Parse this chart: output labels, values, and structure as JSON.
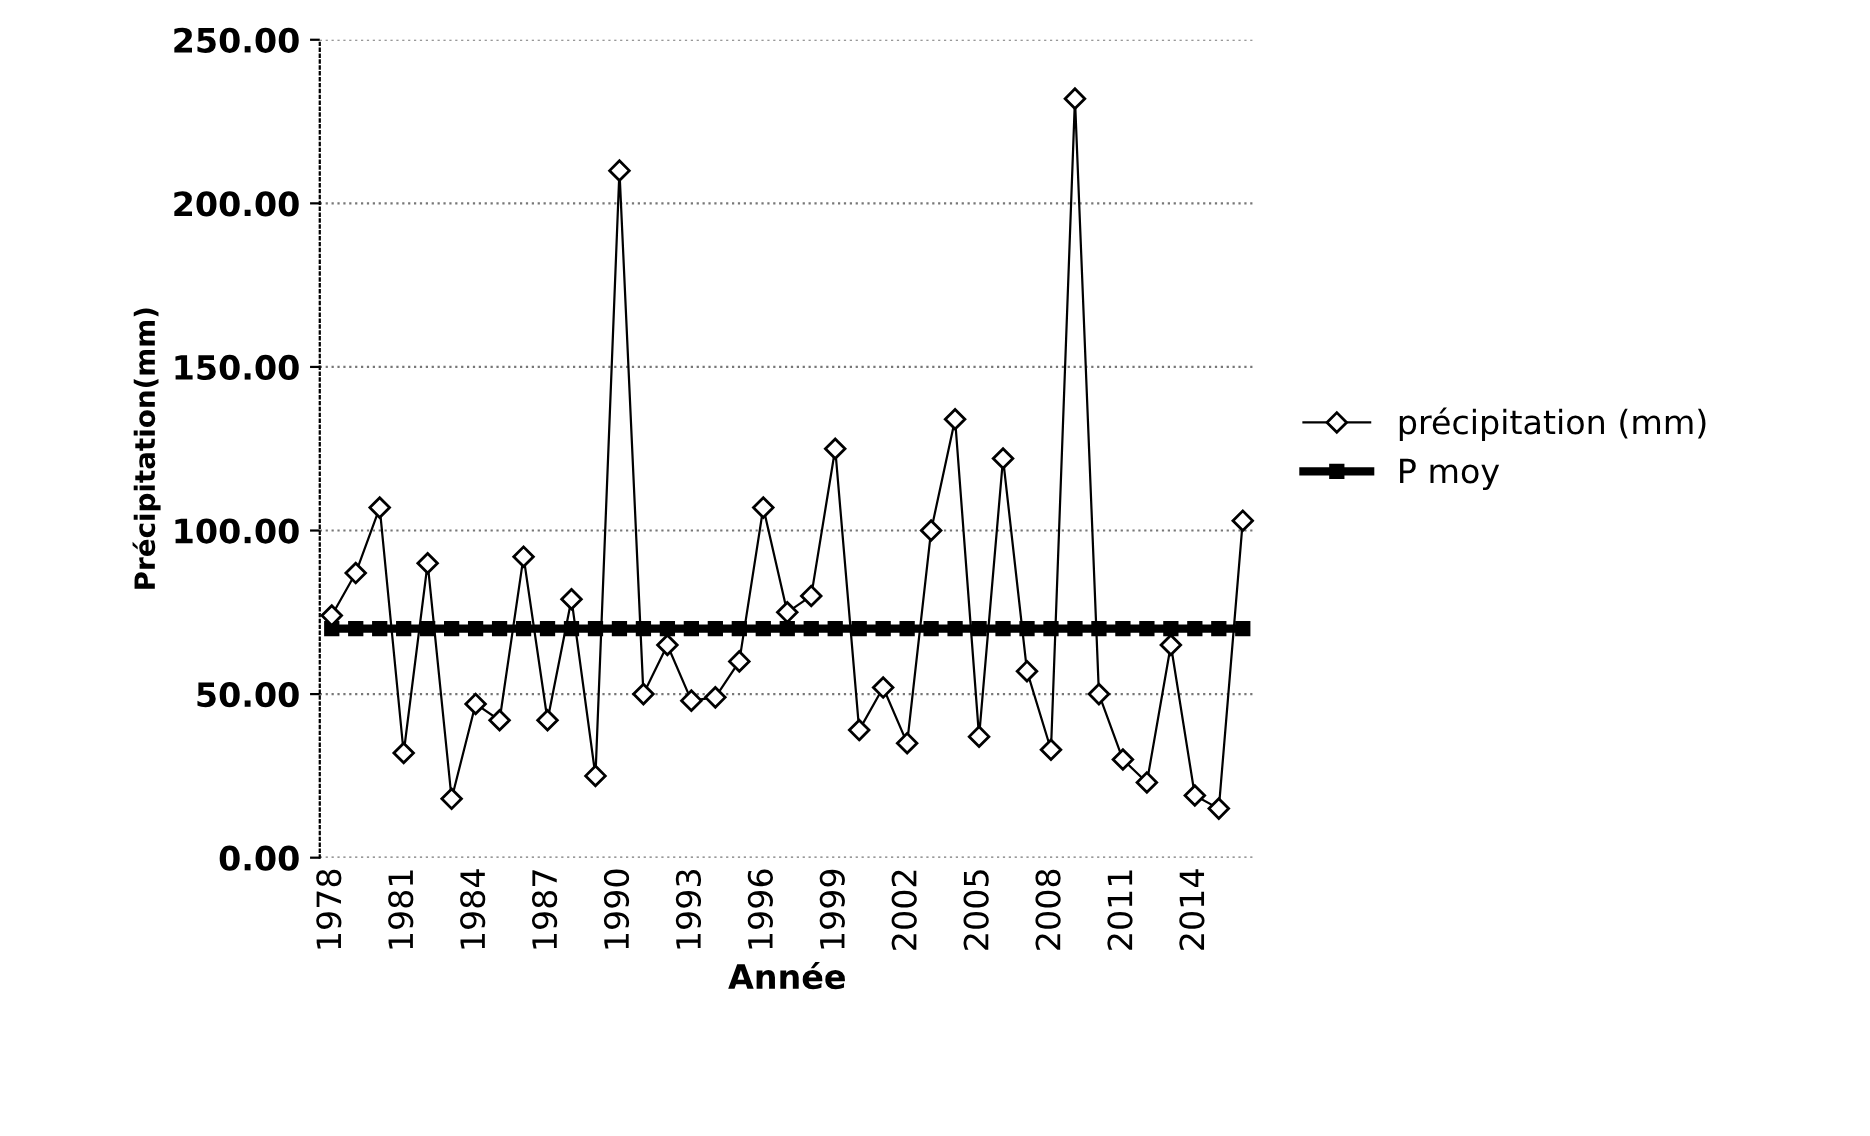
{
  "chart_data": {
    "type": "line",
    "xlabel": "Année",
    "ylabel": "Précipitation(mm)",
    "categories": [
      "1978",
      null,
      null,
      "1981",
      null,
      null,
      "1984",
      null,
      null,
      "1987",
      null,
      null,
      "1990",
      null,
      null,
      "1993",
      null,
      null,
      "1996",
      null,
      null,
      "1999",
      null,
      null,
      "2002",
      null,
      null,
      "2005",
      null,
      null,
      "2008",
      null,
      null,
      "2011",
      null,
      null,
      "2014",
      null,
      null
    ],
    "series": [
      {
        "name": "précipitation (mm)",
        "color": "#000000",
        "marker": "diamond",
        "values": [
          74,
          87,
          107,
          32,
          90,
          18,
          47,
          42,
          92,
          42,
          79,
          25,
          210,
          50,
          65,
          48,
          49,
          60,
          107,
          75,
          80,
          125,
          39,
          52,
          35,
          100,
          134,
          37,
          122,
          57,
          33,
          232,
          50,
          30,
          23,
          65,
          19,
          15,
          103
        ]
      },
      {
        "name": "P moy",
        "color": "#000000",
        "marker": "square",
        "values": [
          70,
          70,
          70,
          70,
          70,
          70,
          70,
          70,
          70,
          70,
          70,
          70,
          70,
          70,
          70,
          70,
          70,
          70,
          70,
          70,
          70,
          70,
          70,
          70,
          70,
          70,
          70,
          70,
          70,
          70,
          70,
          70,
          70,
          70,
          70,
          70,
          70,
          70,
          70
        ]
      }
    ],
    "ylim": [
      0,
      250
    ],
    "yticks": [
      {
        "value": 0,
        "label": "0.00"
      },
      {
        "value": 50,
        "label": "50.00"
      },
      {
        "value": 100,
        "label": "100.00"
      },
      {
        "value": 150,
        "label": "150.00"
      },
      {
        "value": 200,
        "label": "200.00"
      },
      {
        "value": 250,
        "label": "250.00"
      }
    ],
    "grid": "y",
    "legend": "right"
  }
}
